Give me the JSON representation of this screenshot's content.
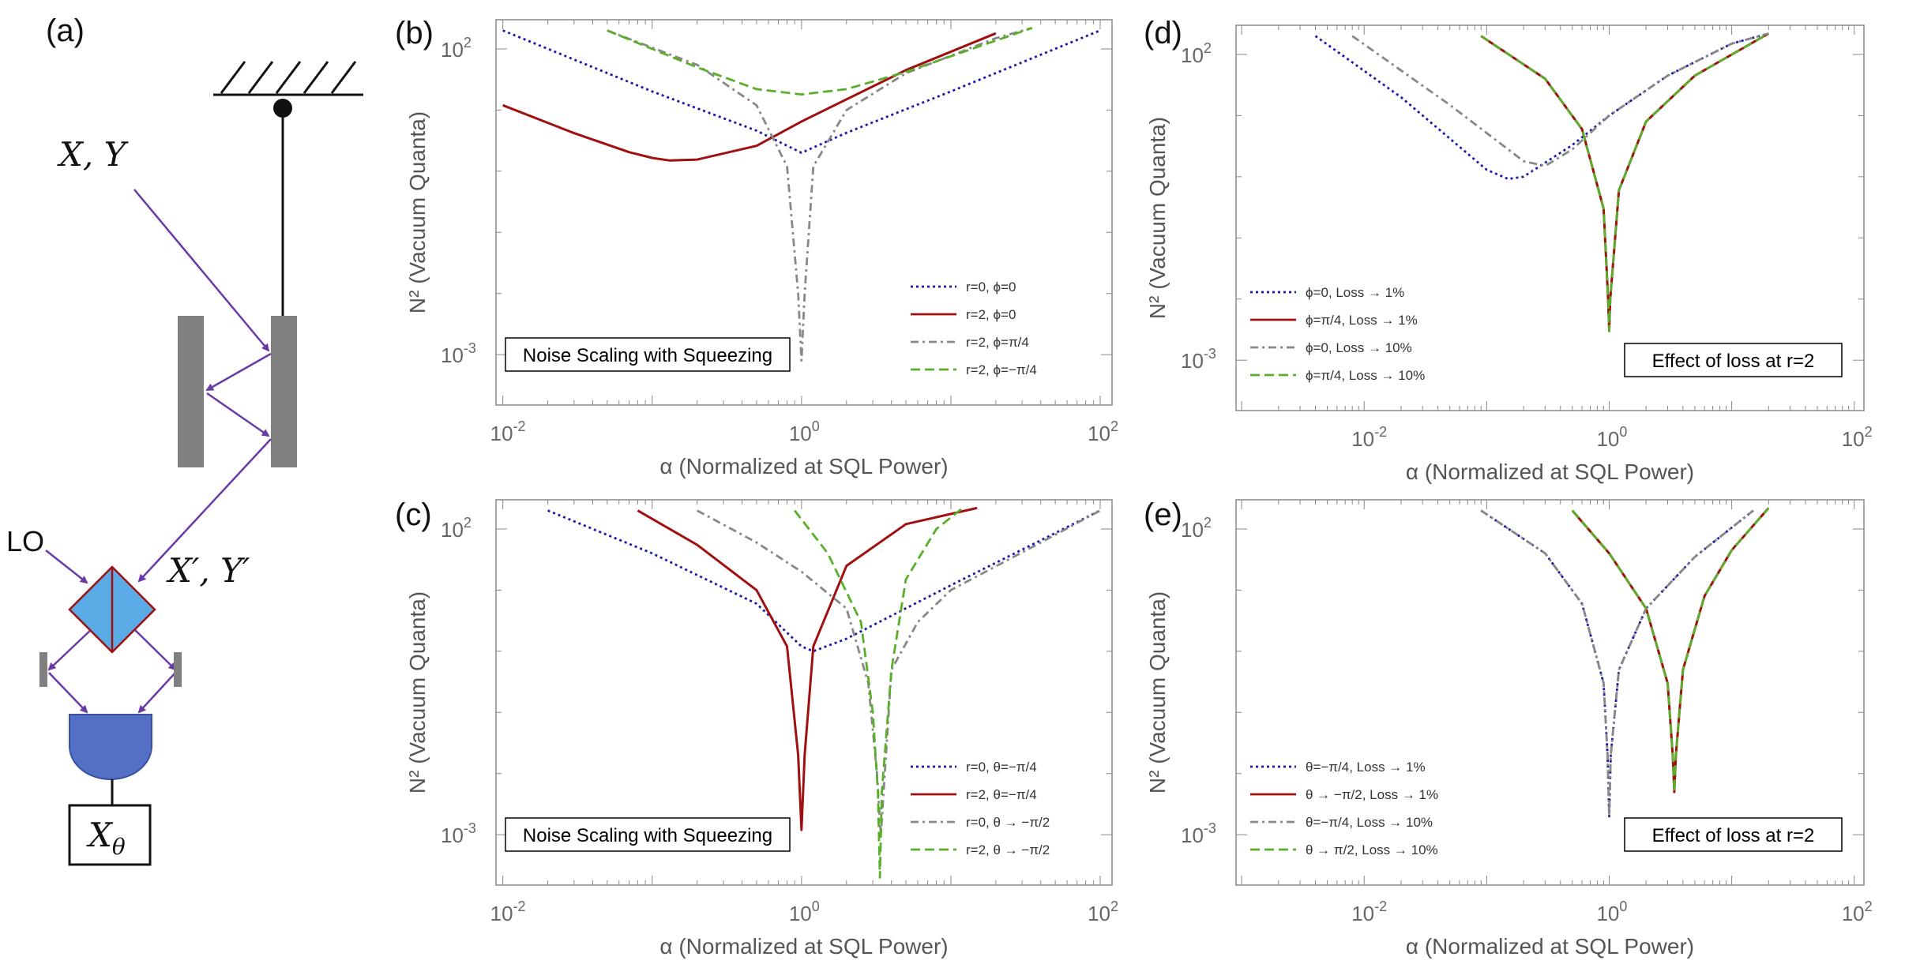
{
  "figure": {
    "panel_a": {
      "letter": "(a)",
      "input_label": "X, Y",
      "output_label": "X′, Y′",
      "lo_label": "LO",
      "measure_label": "X",
      "measure_subscript": "θ"
    }
  },
  "colors": {
    "blue": "#1a1aa6",
    "red": "#a01010",
    "gray": "#888888",
    "green": "#5aaf2a",
    "beam": "#6a3aa6",
    "splitter": "#5aaae6",
    "detector": "#5470c6",
    "mirror": "#808080"
  },
  "chart_data": [
    {
      "id": "b",
      "letter": "(b)",
      "type": "line",
      "title": "Noise Scaling with Squeezing",
      "xlabel": "α (Normalized at SQL Power)",
      "ylabel": "N² (Vacuum Quanta)",
      "xscale": "log",
      "yscale": "log",
      "xlim": [
        0.009,
        120
      ],
      "ylim": [
        0.00015,
        300
      ],
      "xticks": [
        {
          "v": 0.01,
          "b": "10",
          "e": "-2"
        },
        {
          "v": 1,
          "b": "10",
          "e": "0"
        },
        {
          "v": 100,
          "b": "10",
          "e": "2"
        }
      ],
      "yticks": [
        {
          "v": 0.001,
          "b": "10",
          "e": "-3"
        },
        {
          "v": 100,
          "b": "10",
          "e": "2"
        }
      ],
      "legend_position": "bottom-right",
      "title_position": "bottom-left",
      "series": [
        {
          "name": "r=0, ϕ=0",
          "color": "blue",
          "style": "dotted",
          "x": [
            0.01,
            0.1,
            0.5,
            1,
            2,
            10,
            100
          ],
          "y": [
            200,
            20.2,
            4.6,
            2,
            4.25,
            20.2,
            200
          ]
        },
        {
          "name": "r=2, ϕ=0",
          "color": "red",
          "style": "solid",
          "x": [
            0.01,
            0.03,
            0.07,
            0.1,
            0.13,
            0.2,
            0.5,
            1,
            5,
            20
          ],
          "y": [
            12,
            4.2,
            2.05,
            1.65,
            1.5,
            1.55,
            2.6,
            6.5,
            45,
            180
          ]
        },
        {
          "name": "r=2, ϕ=π/4",
          "color": "gray",
          "style": "dashdot",
          "x": [
            0.05,
            0.2,
            0.5,
            0.8,
            0.95,
            1,
            1.05,
            1.2,
            2,
            5,
            20,
            35
          ],
          "y": [
            200,
            55,
            12,
            1.2,
            0.01,
            0.0008,
            0.01,
            1.2,
            10,
            40,
            150,
            220
          ]
        },
        {
          "name": "r=2, ϕ=−π/4",
          "color": "green",
          "style": "dashed",
          "x": [
            0.05,
            0.2,
            0.5,
            1,
            2,
            5,
            35
          ],
          "y": [
            200,
            50,
            22,
            18,
            22,
            42,
            220
          ]
        }
      ]
    },
    {
      "id": "c",
      "letter": "(c)",
      "type": "line",
      "title": "Noise Scaling with Squeezing",
      "xlabel": "α (Normalized at SQL Power)",
      "ylabel": "N² (Vacuum Quanta)",
      "xscale": "log",
      "yscale": "log",
      "xlim": [
        0.009,
        120
      ],
      "ylim": [
        0.00015,
        300
      ],
      "xticks": [
        {
          "v": 0.01,
          "b": "10",
          "e": "-2"
        },
        {
          "v": 1,
          "b": "10",
          "e": "0"
        },
        {
          "v": 100,
          "b": "10",
          "e": "2"
        }
      ],
      "yticks": [
        {
          "v": 0.001,
          "b": "10",
          "e": "-3"
        },
        {
          "v": 100,
          "b": "10",
          "e": "2"
        }
      ],
      "legend_position": "bottom-right",
      "title_position": "bottom-left",
      "series": [
        {
          "name": "r=0, θ=−π/4",
          "color": "blue",
          "style": "dotted",
          "x": [
            0.02,
            0.1,
            0.5,
            1,
            1.2,
            2,
            10,
            100
          ],
          "y": [
            200,
            40,
            6,
            1.2,
            1.0,
            1.6,
            12,
            200
          ]
        },
        {
          "name": "r=2, θ=−π/4",
          "color": "red",
          "style": "solid",
          "x": [
            0.08,
            0.2,
            0.5,
            0.8,
            0.95,
            1,
            1.05,
            1.2,
            2,
            5,
            15
          ],
          "y": [
            200,
            55,
            10,
            1.2,
            0.02,
            0.0012,
            0.02,
            1.2,
            25,
            120,
            220
          ]
        },
        {
          "name": "r=0, θ → −π/2",
          "color": "gray",
          "style": "dashdot",
          "x": [
            0.2,
            0.5,
            1,
            2,
            2.8,
            3.2,
            3.4,
            4,
            6,
            10,
            40,
            100
          ],
          "y": [
            200,
            60,
            20,
            5,
            0.3,
            0.01,
            0.001,
            0.5,
            3,
            10,
            60,
            200
          ]
        },
        {
          "name": "r=2, θ → −π/2",
          "color": "green",
          "style": "dashed",
          "x": [
            0.9,
            1.5,
            2.5,
            3,
            3.25,
            3.35,
            3.45,
            4,
            5,
            8,
            12
          ],
          "y": [
            200,
            40,
            3,
            0.1,
            0.005,
            0.0002,
            0.005,
            0.5,
            15,
            100,
            220
          ]
        }
      ]
    },
    {
      "id": "d",
      "letter": "(d)",
      "type": "line",
      "title": "Effect of loss at r=2",
      "xlabel": "α (Normalized at SQL Power)",
      "ylabel": "N² (Vacuum Quanta)",
      "xscale": "log",
      "yscale": "log",
      "xlim": [
        0.0009,
        120
      ],
      "ylim": [
        0.00015,
        300
      ],
      "xticks": [
        {
          "v": 0.01,
          "b": "10",
          "e": "-2"
        },
        {
          "v": 1,
          "b": "10",
          "e": "0"
        },
        {
          "v": 100,
          "b": "10",
          "e": "2"
        }
      ],
      "yticks": [
        {
          "v": 0.001,
          "b": "10",
          "e": "-3"
        },
        {
          "v": 100,
          "b": "10",
          "e": "2"
        }
      ],
      "legend_position": "bottom-left",
      "title_position": "bottom-right",
      "series": [
        {
          "name": "ϕ=0, Loss → 1%",
          "color": "blue",
          "style": "dotted",
          "x": [
            0.004,
            0.02,
            0.1,
            0.15,
            0.2,
            0.5,
            1,
            3,
            10,
            20
          ],
          "y": [
            200,
            20,
            1.3,
            0.92,
            1.0,
            3.3,
            10,
            45,
            150,
            220
          ]
        },
        {
          "name": "ϕ=π/4, Loss → 1%",
          "color": "red",
          "style": "solid",
          "x": [
            0.09,
            0.3,
            0.6,
            0.9,
            0.98,
            1,
            1.02,
            1.2,
            2,
            5,
            20
          ],
          "y": [
            200,
            40,
            6,
            0.3,
            0.01,
            0.003,
            0.01,
            0.6,
            8,
            45,
            220
          ]
        },
        {
          "name": "ϕ=0, Loss → 10%",
          "color": "gray",
          "style": "dashdot",
          "x": [
            0.008,
            0.05,
            0.2,
            0.3,
            0.5,
            1,
            3,
            10,
            20
          ],
          "y": [
            200,
            15,
            1.8,
            1.5,
            2.8,
            10,
            45,
            150,
            220
          ]
        },
        {
          "name": "ϕ=π/4, Loss → 10%",
          "color": "green",
          "style": "dashed",
          "x": [
            0.09,
            0.3,
            0.6,
            0.9,
            0.98,
            1,
            1.02,
            1.2,
            2,
            5,
            20
          ],
          "y": [
            200,
            40,
            6,
            0.3,
            0.01,
            0.003,
            0.01,
            0.6,
            8,
            45,
            220
          ]
        }
      ]
    },
    {
      "id": "e",
      "letter": "(e)",
      "type": "line",
      "title": "Effect of loss at r=2",
      "xlabel": "α (Normalized at SQL Power)",
      "ylabel": "N² (Vacuum Quanta)",
      "xscale": "log",
      "yscale": "log",
      "xlim": [
        0.0009,
        120
      ],
      "ylim": [
        0.00015,
        300
      ],
      "xticks": [
        {
          "v": 0.01,
          "b": "10",
          "e": "-2"
        },
        {
          "v": 1,
          "b": "10",
          "e": "0"
        },
        {
          "v": 100,
          "b": "10",
          "e": "2"
        }
      ],
      "yticks": [
        {
          "v": 0.001,
          "b": "10",
          "e": "-3"
        },
        {
          "v": 100,
          "b": "10",
          "e": "2"
        }
      ],
      "legend_position": "bottom-left",
      "title_position": "bottom-right",
      "series": [
        {
          "name": "θ=−π/4, Loss → 1%",
          "color": "blue",
          "style": "dotted",
          "x": [
            0.09,
            0.3,
            0.6,
            0.9,
            0.97,
            1,
            1.03,
            1.2,
            2,
            5,
            15
          ],
          "y": [
            200,
            40,
            6,
            0.3,
            0.02,
            0.002,
            0.02,
            0.5,
            5,
            35,
            200
          ]
        },
        {
          "name": "θ → −π/2, Loss → 1%",
          "color": "red",
          "style": "solid",
          "x": [
            0.5,
            1,
            2,
            3,
            3.3,
            3.4,
            3.5,
            4,
            6,
            10,
            20
          ],
          "y": [
            200,
            40,
            5,
            0.3,
            0.02,
            0.005,
            0.02,
            0.5,
            8,
            45,
            220
          ]
        },
        {
          "name": "θ=−π/4, Loss → 10%",
          "color": "gray",
          "style": "dashdot",
          "x": [
            0.09,
            0.3,
            0.6,
            0.9,
            0.97,
            1,
            1.03,
            1.2,
            2,
            5,
            15
          ],
          "y": [
            200,
            40,
            6,
            0.3,
            0.02,
            0.002,
            0.02,
            0.5,
            5,
            35,
            200
          ]
        },
        {
          "name": "θ → π/2, Loss → 10%",
          "color": "green",
          "style": "dashed",
          "x": [
            0.5,
            1,
            2,
            3,
            3.3,
            3.4,
            3.5,
            4,
            6,
            10,
            20
          ],
          "y": [
            200,
            40,
            5,
            0.3,
            0.02,
            0.005,
            0.02,
            0.5,
            8,
            45,
            220
          ]
        }
      ]
    }
  ]
}
